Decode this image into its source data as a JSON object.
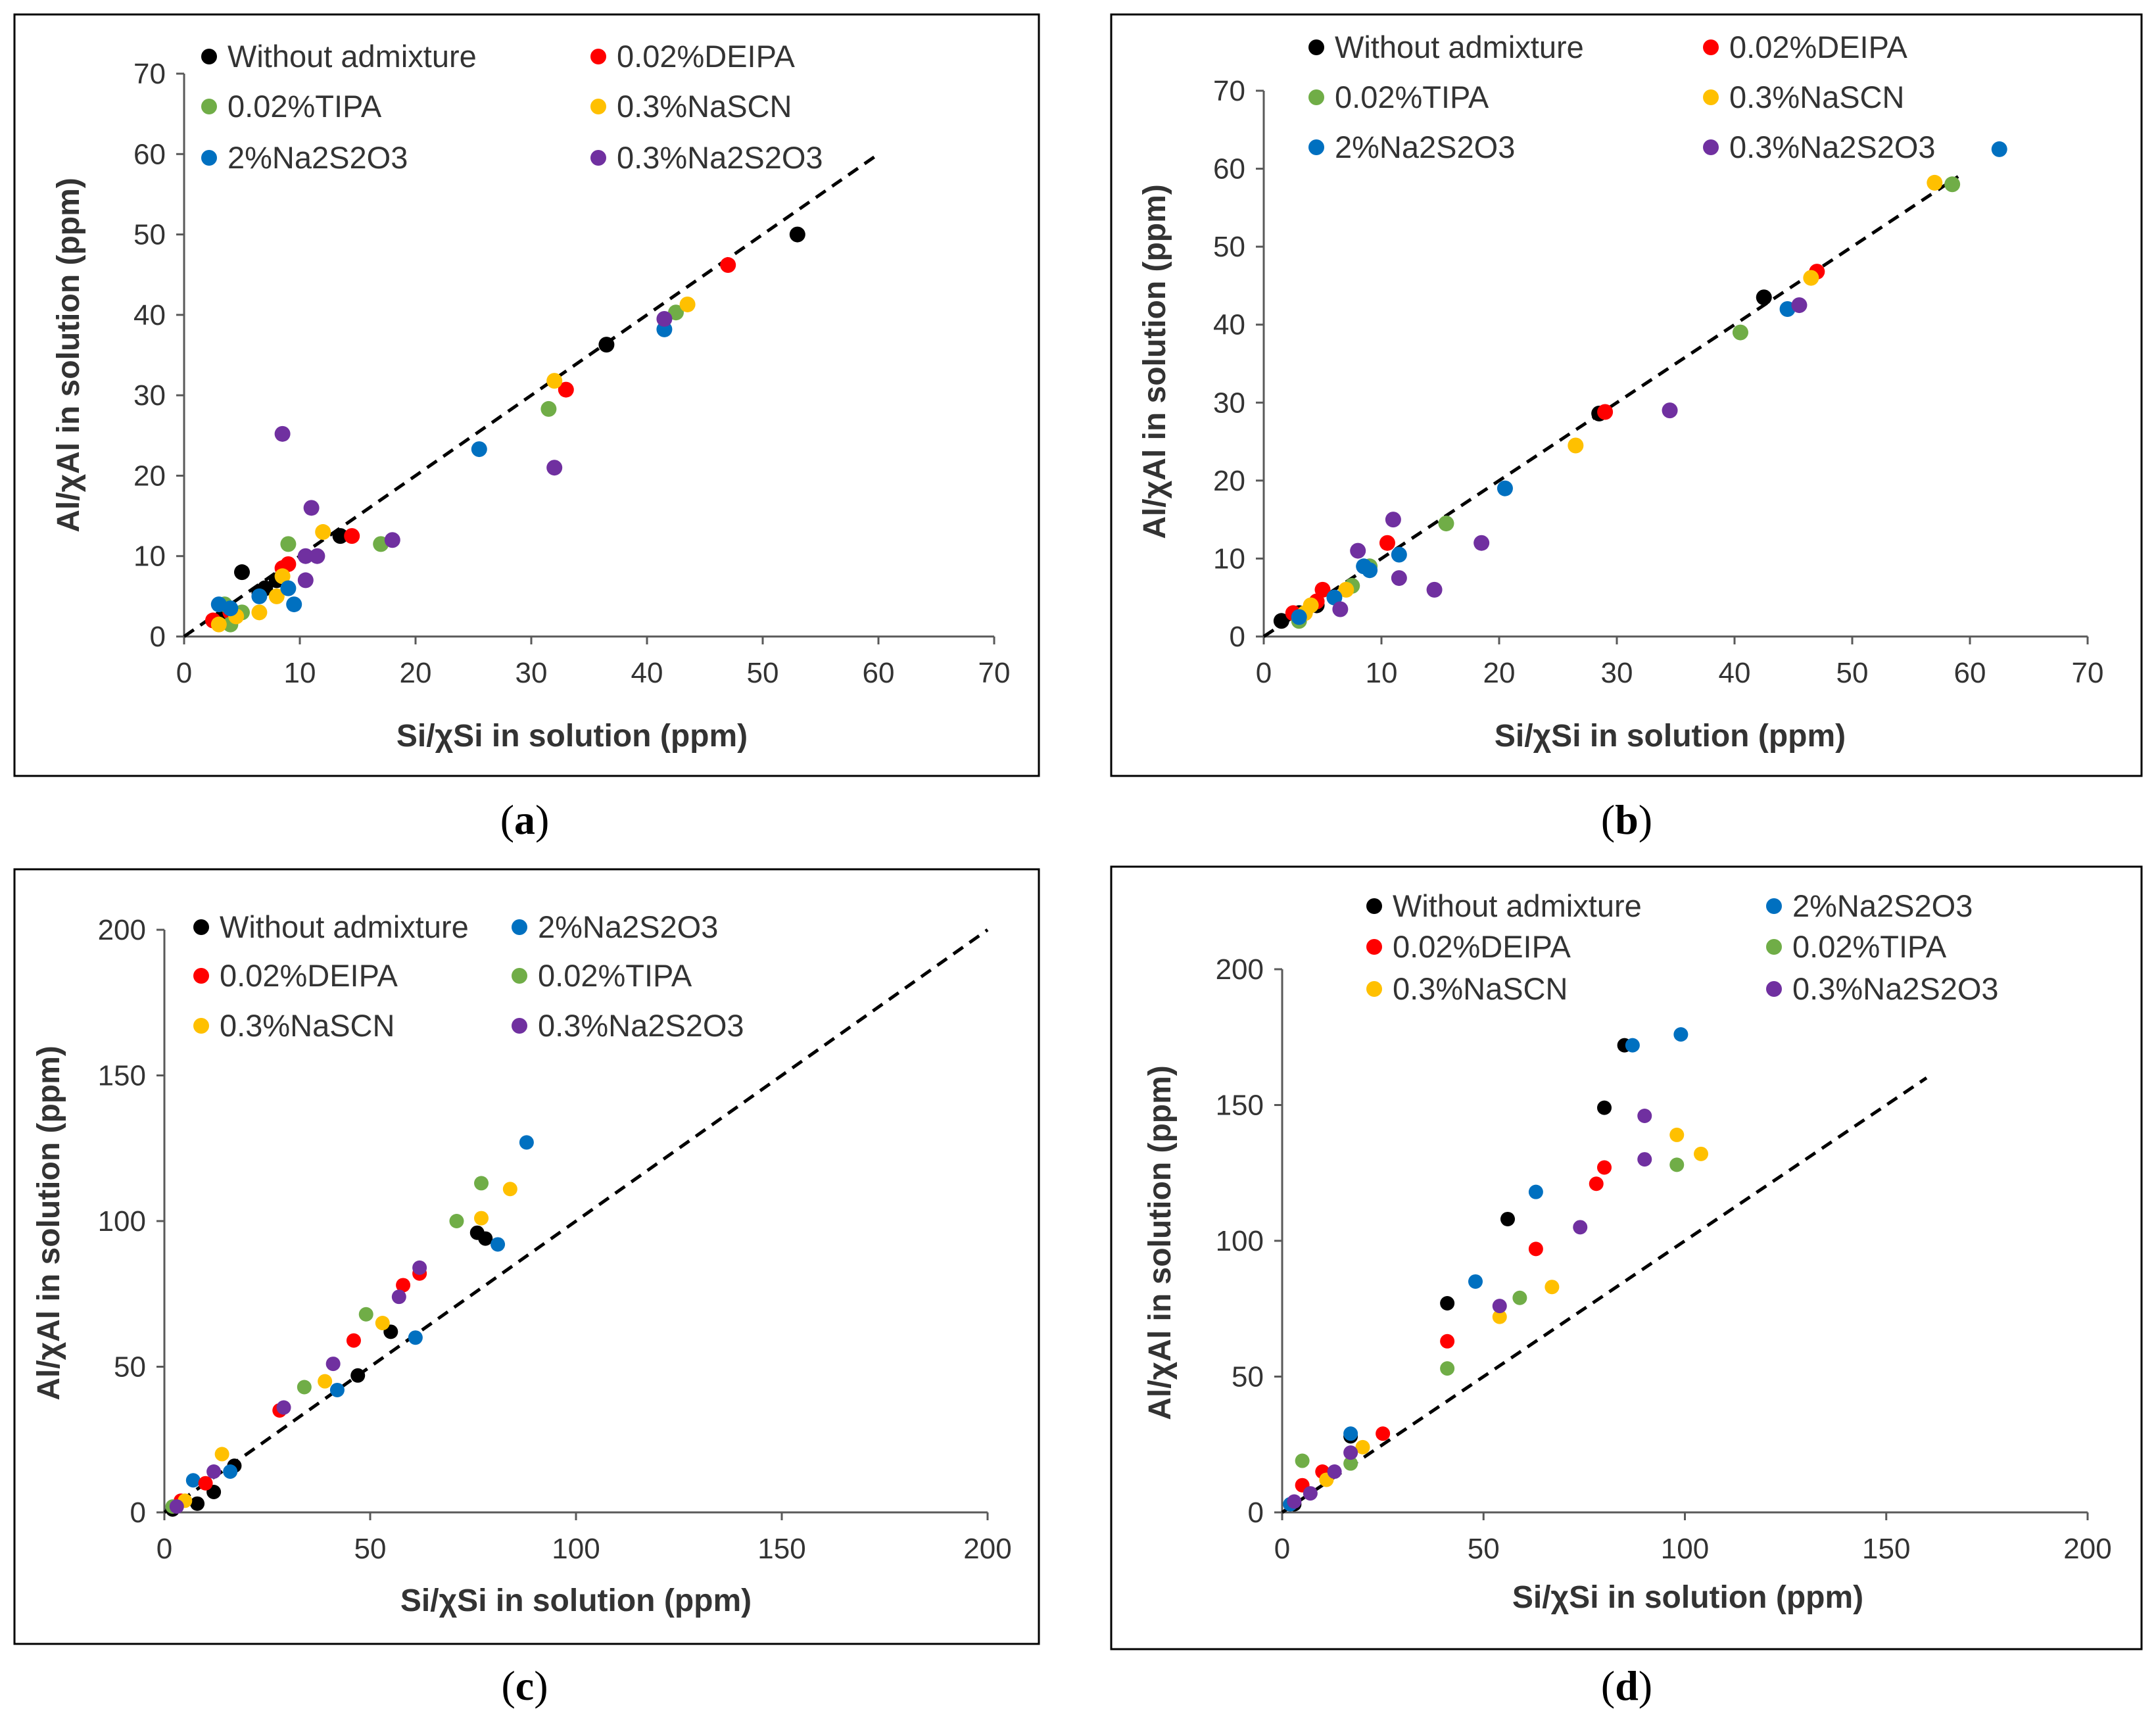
{
  "colors": {
    "Without admixture": "#000000",
    "0.02%DEIPA": "#ff0000",
    "0.02%TIPA": "#70ad47",
    "0.3%NaSCN": "#ffc000",
    "2%Na2S2O3": "#0070c0",
    "0.3%Na2S2O3": "#7030a0"
  },
  "chart_data": [
    {
      "type": "scatter",
      "caption_letter": "a",
      "xlabel": "Si/χSi in solution (ppm)",
      "ylabel": "Al/χAl in solution (ppm)",
      "xlim": [
        0,
        70
      ],
      "ylim": [
        0,
        70
      ],
      "xticks": [
        "0",
        "10",
        "20",
        "30",
        "40",
        "50",
        "60",
        "70"
      ],
      "yticks": [
        "0",
        "10",
        "20",
        "30",
        "40",
        "50",
        "60",
        "70"
      ],
      "reference_line": {
        "from": [
          0,
          0
        ],
        "to": [
          60,
          60
        ],
        "style": "dashed"
      },
      "legend": [
        "Without admixture",
        "0.02%DEIPA",
        "0.02%TIPA",
        "0.3%NaSCN",
        "2%Na2S2O3",
        "0.3%Na2S2O3"
      ],
      "series": [
        {
          "name": "Without admixture",
          "points": [
            [
              3.5,
              2.5
            ],
            [
              4,
              3
            ],
            [
              5,
              8
            ],
            [
              6.5,
              5.5
            ],
            [
              7,
              6
            ],
            [
              8,
              7
            ],
            [
              13.5,
              12.5
            ],
            [
              36.5,
              36.3
            ],
            [
              53,
              50
            ]
          ]
        },
        {
          "name": "0.02%DEIPA",
          "points": [
            [
              2.5,
              2
            ],
            [
              4,
              3
            ],
            [
              8.5,
              8.5
            ],
            [
              9,
              9
            ],
            [
              14.5,
              12.5
            ],
            [
              33,
              30.7
            ],
            [
              47,
              46.2
            ]
          ]
        },
        {
          "name": "0.02%TIPA",
          "points": [
            [
              3.5,
              4
            ],
            [
              4,
              1.5
            ],
            [
              5,
              3
            ],
            [
              9,
              11.5
            ],
            [
              17,
              11.5
            ],
            [
              31.5,
              28.3
            ],
            [
              42.5,
              40.3
            ]
          ]
        },
        {
          "name": "0.3%NaSCN",
          "points": [
            [
              3,
              1.5
            ],
            [
              4.5,
              2.5
            ],
            [
              6.5,
              3
            ],
            [
              8,
              5
            ],
            [
              8.5,
              7.5
            ],
            [
              12,
              13
            ],
            [
              32,
              31.8
            ],
            [
              43.5,
              41.3
            ]
          ]
        },
        {
          "name": "2%Na2S2O3",
          "points": [
            [
              3,
              4
            ],
            [
              4,
              3.5
            ],
            [
              6.5,
              5
            ],
            [
              9,
              6
            ],
            [
              9.5,
              4
            ],
            [
              25.5,
              23.3
            ],
            [
              41.5,
              38.2
            ]
          ]
        },
        {
          "name": "0.3%Na2S2O3",
          "points": [
            [
              8.5,
              25.2
            ],
            [
              10.5,
              10
            ],
            [
              10.5,
              7
            ],
            [
              11,
              16
            ],
            [
              11.5,
              10
            ],
            [
              18,
              12
            ],
            [
              32,
              21
            ],
            [
              41.5,
              39.5
            ]
          ]
        }
      ]
    },
    {
      "type": "scatter",
      "caption_letter": "b",
      "xlabel": "Si/χSi in solution (ppm)",
      "ylabel": "Al/χAl in solution (ppm)",
      "xlim": [
        0,
        70
      ],
      "ylim": [
        0,
        70
      ],
      "xticks": [
        "0",
        "10",
        "20",
        "30",
        "40",
        "50",
        "60",
        "70"
      ],
      "yticks": [
        "0",
        "10",
        "20",
        "30",
        "40",
        "50",
        "60",
        "70"
      ],
      "reference_line": {
        "from": [
          0,
          0
        ],
        "to": [
          59,
          59
        ],
        "style": "dashed"
      },
      "legend": [
        "Without admixture",
        "0.02%DEIPA",
        "0.02%TIPA",
        "0.3%NaSCN",
        "2%Na2S2O3",
        "0.3%Na2S2O3"
      ],
      "series": [
        {
          "name": "Without admixture",
          "points": [
            [
              1.5,
              2
            ],
            [
              3,
              3
            ],
            [
              4.5,
              4
            ],
            [
              28.5,
              28.6
            ],
            [
              42.5,
              43.5
            ]
          ]
        },
        {
          "name": "0.02%DEIPA",
          "points": [
            [
              2.5,
              3
            ],
            [
              4.5,
              4.5
            ],
            [
              5,
              6
            ],
            [
              10.5,
              12
            ],
            [
              29,
              28.8
            ],
            [
              47,
              46.8
            ]
          ]
        },
        {
          "name": "0.02%TIPA",
          "points": [
            [
              3,
              2
            ],
            [
              7.5,
              6.5
            ],
            [
              9,
              9
            ],
            [
              15.5,
              14.5
            ],
            [
              40.5,
              39
            ],
            [
              58.5,
              58
            ]
          ]
        },
        {
          "name": "0.3%NaSCN",
          "points": [
            [
              3.5,
              3
            ],
            [
              4,
              4
            ],
            [
              7,
              6
            ],
            [
              26.5,
              24.5
            ],
            [
              46.5,
              46
            ],
            [
              57,
              58.2
            ]
          ]
        },
        {
          "name": "2%Na2S2O3",
          "points": [
            [
              3,
              2.5
            ],
            [
              6,
              5
            ],
            [
              8.5,
              9
            ],
            [
              9,
              8.5
            ],
            [
              11.5,
              10.5
            ],
            [
              20.5,
              19
            ],
            [
              44.5,
              42
            ],
            [
              62.5,
              62.5
            ]
          ]
        },
        {
          "name": "0.3%Na2S2O3",
          "points": [
            [
              6.5,
              3.5
            ],
            [
              8,
              11
            ],
            [
              11,
              15
            ],
            [
              11.5,
              7.5
            ],
            [
              14.5,
              6
            ],
            [
              18.5,
              12
            ],
            [
              34.5,
              29
            ],
            [
              45.5,
              42.5
            ]
          ]
        }
      ]
    },
    {
      "type": "scatter",
      "caption_letter": "c",
      "xlabel": "Si/χSi in solution (ppm)",
      "ylabel": "Al/χAl in solution (ppm)",
      "xlim": [
        0,
        200
      ],
      "ylim": [
        0,
        200
      ],
      "xticks": [
        "0",
        "50",
        "100",
        "150",
        "200"
      ],
      "yticks": [
        "0",
        "50",
        "100",
        "150",
        "200"
      ],
      "reference_line": {
        "from": [
          0,
          0
        ],
        "to": [
          200,
          200
        ],
        "style": "dashed"
      },
      "legend": [
        "Without admixture",
        "2%Na2S2O3",
        "0.02%DEIPA",
        "0.02%TIPA",
        "0.3%NaSCN",
        "0.3%Na2S2O3"
      ],
      "series": [
        {
          "name": "Without admixture",
          "points": [
            [
              2,
              1
            ],
            [
              8,
              3
            ],
            [
              12,
              7
            ],
            [
              17,
              16
            ],
            [
              47,
              47
            ],
            [
              55,
              62
            ],
            [
              76,
              96
            ],
            [
              78,
              94
            ]
          ]
        },
        {
          "name": "2%Na2S2O3",
          "points": [
            [
              7,
              11
            ],
            [
              16,
              14
            ],
            [
              42,
              42
            ],
            [
              61,
              60
            ],
            [
              81,
              92
            ],
            [
              88,
              127
            ]
          ]
        },
        {
          "name": "0.02%DEIPA",
          "points": [
            [
              4,
              4
            ],
            [
              10,
              10
            ],
            [
              28,
              35
            ],
            [
              46,
              59
            ],
            [
              58,
              78
            ],
            [
              62,
              82
            ]
          ]
        },
        {
          "name": "0.02%TIPA",
          "points": [
            [
              2,
              2
            ],
            [
              34,
              43
            ],
            [
              49,
              68
            ],
            [
              71,
              100
            ],
            [
              77,
              113
            ]
          ]
        },
        {
          "name": "0.3%NaSCN",
          "points": [
            [
              5,
              4
            ],
            [
              14,
              20
            ],
            [
              39,
              45
            ],
            [
              53,
              65
            ],
            [
              77,
              101
            ],
            [
              84,
              111
            ]
          ]
        },
        {
          "name": "0.3%Na2S2O3",
          "points": [
            [
              3,
              2
            ],
            [
              12,
              14
            ],
            [
              29,
              36
            ],
            [
              41,
              51
            ],
            [
              57,
              74
            ],
            [
              62,
              84
            ]
          ]
        }
      ]
    },
    {
      "type": "scatter",
      "caption_letter": "d",
      "xlabel": "Si/χSi in solution (ppm)",
      "ylabel": "Al/χAl in solution (ppm)",
      "xlim": [
        0,
        200
      ],
      "ylim": [
        0,
        200
      ],
      "xticks": [
        "0",
        "50",
        "100",
        "150",
        "200"
      ],
      "yticks": [
        "0",
        "50",
        "100",
        "150",
        "200"
      ],
      "reference_line": {
        "from": [
          0,
          0
        ],
        "to": [
          160,
          160
        ],
        "style": "dashed"
      },
      "legend": [
        "Without admixture",
        "2%Na2S2O3",
        "0.02%DEIPA",
        "0.02%TIPA",
        "0.3%NaSCN",
        "0.3%Na2S2O3"
      ],
      "series": [
        {
          "name": "Without admixture",
          "points": [
            [
              3,
              3
            ],
            [
              17,
              28
            ],
            [
              41,
              77
            ],
            [
              56,
              108
            ],
            [
              80,
              149
            ],
            [
              85,
              172
            ]
          ]
        },
        {
          "name": "2%Na2S2O3",
          "points": [
            [
              2,
              3
            ],
            [
              17,
              29
            ],
            [
              48,
              85
            ],
            [
              63,
              118
            ],
            [
              87,
              172
            ],
            [
              99,
              176
            ]
          ]
        },
        {
          "name": "0.02%DEIPA",
          "points": [
            [
              5,
              10
            ],
            [
              10,
              15
            ],
            [
              25,
              29
            ],
            [
              41,
              63
            ],
            [
              63,
              97
            ],
            [
              78,
              121
            ],
            [
              80,
              127
            ]
          ]
        },
        {
          "name": "0.02%TIPA",
          "points": [
            [
              5,
              19
            ],
            [
              17,
              18
            ],
            [
              41,
              53
            ],
            [
              59,
              79
            ],
            [
              98,
              128
            ]
          ]
        },
        {
          "name": "0.3%NaSCN",
          "points": [
            [
              11,
              12
            ],
            [
              20,
              24
            ],
            [
              54,
              72
            ],
            [
              67,
              83
            ],
            [
              98,
              139
            ],
            [
              104,
              132
            ]
          ]
        },
        {
          "name": "0.3%Na2S2O3",
          "points": [
            [
              3,
              4
            ],
            [
              7,
              7
            ],
            [
              13,
              15
            ],
            [
              17,
              22
            ],
            [
              54,
              76
            ],
            [
              74,
              105
            ],
            [
              90,
              130
            ],
            [
              90,
              146
            ]
          ]
        }
      ]
    }
  ]
}
